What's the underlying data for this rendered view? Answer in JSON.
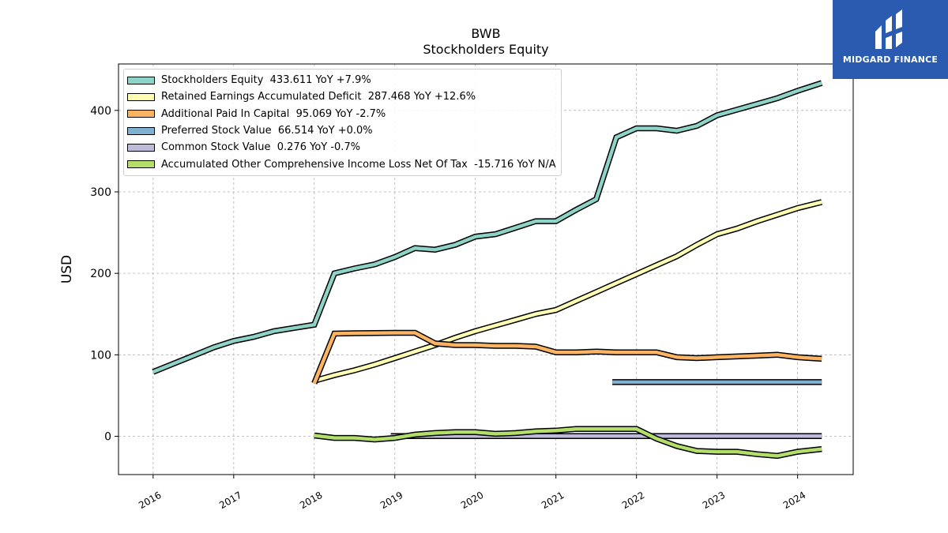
{
  "brand": {
    "name": "MIDGARD FINANCE",
    "icon": "midgard-logo-icon",
    "background": "#2a5bb0"
  },
  "chart_data": {
    "type": "line",
    "title": "BWB",
    "subtitle": "Stockholders  Equity",
    "ylabel": "USD",
    "xlabel": "",
    "ylim": [
      -47,
      457
    ],
    "xlim": [
      2015.57,
      2024.69
    ],
    "yticks": [
      0,
      100,
      200,
      300,
      400
    ],
    "xticks": [
      "2016",
      "2017",
      "2018",
      "2019",
      "2020",
      "2021",
      "2022",
      "2023",
      "2024"
    ],
    "grid": true,
    "legend_position": "top-left",
    "series": [
      {
        "name": "Stockholders Equity",
        "legend": "Stockholders Equity  433.611 YoY +7.9%",
        "color": "#8dd3c7",
        "x": [
          2016.0,
          2016.25,
          2016.5,
          2016.75,
          2017.0,
          2017.25,
          2017.5,
          2017.75,
          2018.0,
          2018.25,
          2018.5,
          2018.75,
          2019.0,
          2019.25,
          2019.5,
          2019.75,
          2020.0,
          2020.25,
          2020.5,
          2020.75,
          2021.0,
          2021.25,
          2021.5,
          2021.75,
          2022.0,
          2022.25,
          2022.5,
          2022.75,
          2023.0,
          2023.25,
          2023.5,
          2023.75,
          2024.0,
          2024.3
        ],
        "y": [
          79,
          89,
          99,
          109,
          117,
          122,
          129,
          133,
          137,
          200,
          206,
          211,
          220,
          231,
          229,
          235,
          245,
          248,
          256,
          264,
          264,
          278,
          291,
          367,
          378,
          378,
          375,
          381,
          394,
          401,
          408,
          415,
          424,
          433.611
        ]
      },
      {
        "name": "Retained Earnings Accumulated Deficit",
        "legend": "Retained Earnings Accumulated Deficit  287.468 YoY +12.6%",
        "color": "#ffffb3",
        "x": [
          2018.0,
          2018.25,
          2018.5,
          2018.75,
          2019.0,
          2019.25,
          2019.5,
          2019.75,
          2020.0,
          2020.25,
          2020.5,
          2020.75,
          2021.0,
          2021.25,
          2021.5,
          2021.75,
          2022.0,
          2022.25,
          2022.5,
          2022.75,
          2023.0,
          2023.25,
          2023.5,
          2023.75,
          2024.0,
          2024.3
        ],
        "y": [
          68,
          75,
          81,
          88,
          96,
          104,
          112,
          121,
          129,
          136,
          143,
          150,
          155,
          166,
          177,
          188,
          199,
          210,
          221,
          235,
          248,
          255,
          264,
          272,
          280,
          287.468
        ]
      },
      {
        "name": "Additional Paid In Capital",
        "legend": "Additional Paid In Capital  95.069 YoY -2.7%",
        "color": "#fdb462",
        "x": [
          2018.0,
          2018.25,
          2018.5,
          2018.75,
          2019.0,
          2019.25,
          2019.5,
          2019.75,
          2020.0,
          2020.25,
          2020.5,
          2020.75,
          2021.0,
          2021.25,
          2021.5,
          2021.75,
          2022.0,
          2022.25,
          2022.5,
          2022.75,
          2023.0,
          2023.25,
          2023.5,
          2023.75,
          2024.0,
          2024.3
        ],
        "y": [
          65,
          126,
          126.5,
          126.8,
          127,
          127,
          114,
          112,
          112,
          111,
          111,
          110,
          103,
          103,
          104,
          103,
          103,
          103,
          97,
          96,
          97,
          98,
          99,
          100,
          97,
          95.069
        ]
      },
      {
        "name": "Preferred Stock Value",
        "legend": "Preferred Stock Value  66.514 YoY +0.0%",
        "color": "#80b1d3",
        "x": [
          2021.7,
          2024.3
        ],
        "y": [
          66.514,
          66.514
        ]
      },
      {
        "name": "Common Stock Value",
        "legend": "Common Stock Value  0.276 YoY -0.7%",
        "color": "#bebada",
        "x": [
          2018.95,
          2024.3
        ],
        "y": [
          0.28,
          0.276
        ]
      },
      {
        "name": "Accumulated Other Comprehensive Income Loss Net Of Tax",
        "legend": "Accumulated Other Comprehensive Income Loss Net Of Tax  -15.716 YoY N/A",
        "color": "#b3de69",
        "x": [
          2018.0,
          2018.25,
          2018.5,
          2018.75,
          2019.0,
          2019.25,
          2019.5,
          2019.75,
          2020.0,
          2020.25,
          2020.5,
          2020.75,
          2021.0,
          2021.25,
          2021.5,
          2021.75,
          2022.0,
          2022.25,
          2022.5,
          2022.75,
          2023.0,
          2023.25,
          2023.5,
          2023.75,
          2024.0,
          2024.3
        ],
        "y": [
          1,
          -2,
          -2,
          -4,
          -2,
          2,
          4,
          5,
          5,
          3,
          4,
          6,
          7,
          9,
          9,
          9,
          9,
          -3,
          -12,
          -18,
          -19,
          -19,
          -22,
          -24,
          -19,
          -15.716
        ]
      }
    ]
  }
}
